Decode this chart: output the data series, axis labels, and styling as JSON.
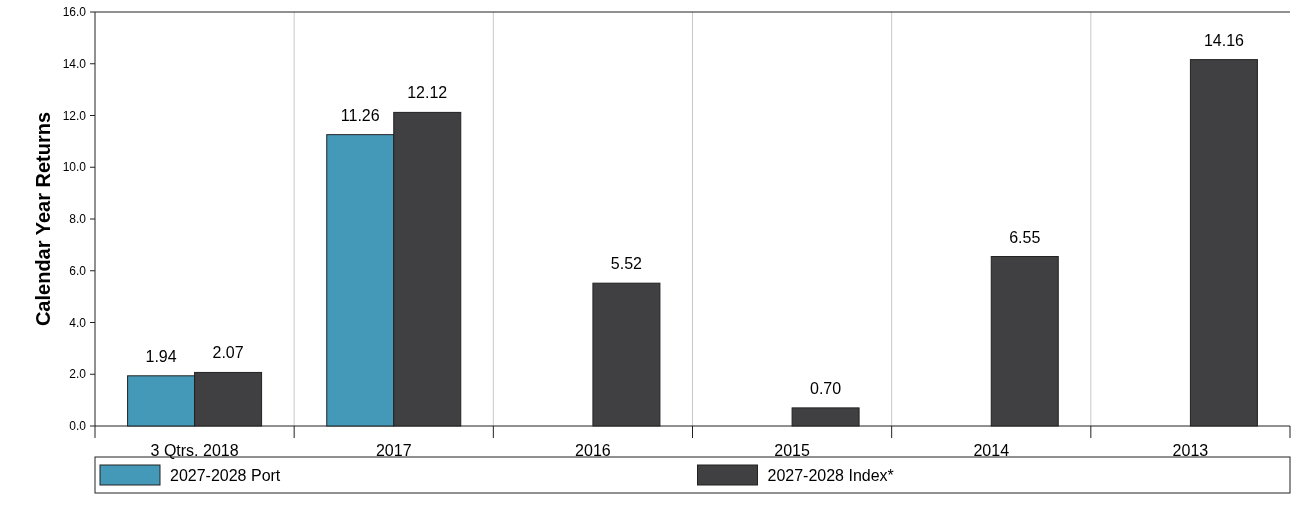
{
  "chart_data": {
    "type": "bar",
    "ylabel": "Calendar Year Returns",
    "categories": [
      "3 Qtrs. 2018",
      "2017",
      "2016",
      "2015",
      "2014",
      "2013"
    ],
    "series": [
      {
        "name": "2027-2028 Port",
        "color": "#4499b8",
        "values": [
          1.94,
          11.26,
          null,
          null,
          null,
          null
        ],
        "value_labels": [
          "1.94",
          "11.26",
          null,
          null,
          null,
          null
        ]
      },
      {
        "name": "2027-2028 Index*",
        "color": "#404042",
        "values": [
          2.07,
          12.12,
          5.52,
          0.7,
          6.55,
          14.16
        ],
        "value_labels": [
          "2.07",
          "12.12",
          "5.52",
          "0.70",
          "6.55",
          "14.16"
        ]
      }
    ],
    "ylim": [
      0,
      16
    ],
    "yticks": [
      {
        "value": 0,
        "label": "0.0"
      },
      {
        "value": 2,
        "label": "2.0"
      },
      {
        "value": 4,
        "label": "4.0"
      },
      {
        "value": 6,
        "label": "6.0"
      },
      {
        "value": 8,
        "label": "8.0"
      },
      {
        "value": 10,
        "label": "10.0"
      },
      {
        "value": 12,
        "label": "12.0"
      },
      {
        "value": 14,
        "label": "14.0"
      },
      {
        "value": 16,
        "label": "16.0"
      }
    ],
    "grid": "x",
    "legend": "bottom"
  }
}
